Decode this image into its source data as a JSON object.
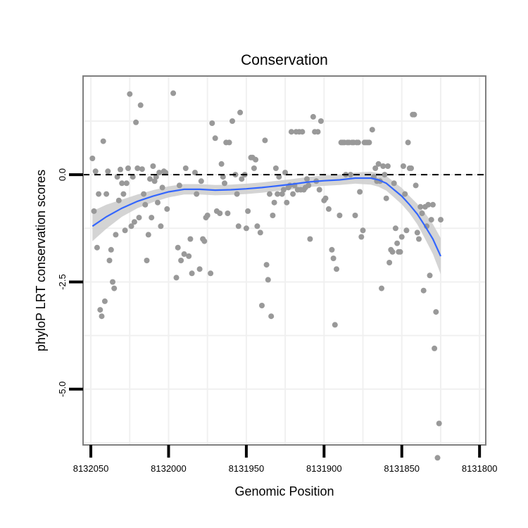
{
  "chart_data": {
    "type": "scatter",
    "title": "Conservation",
    "xlabel": "Genomic Position",
    "ylabel": "phyloP LRT conservation scores",
    "x_reversed": true,
    "xlim": [
      8132055,
      8131796
    ],
    "ylim": [
      -6.3,
      2.3
    ],
    "x_ticks": [
      8132050,
      8132000,
      8131950,
      8131900,
      8131850,
      8131800
    ],
    "x_tick_labels": [
      "8132050",
      "8132000",
      "8131950",
      "8131900",
      "8131850",
      "8131800"
    ],
    "y_ticks": [
      0.0,
      -2.5,
      -5.0
    ],
    "y_tick_labels": [
      "0.0",
      "-2.5",
      "-5.0"
    ],
    "reference_line": 0,
    "grid": true,
    "colors": {
      "points": "#999999",
      "smooth": "#3366ff",
      "ribbon": "#cccccc",
      "grid": "#f0f0f0",
      "border": "#7f7f7f"
    },
    "series": [
      {
        "type": "scatter",
        "points": [
          [
            8132049,
            0.38
          ],
          [
            8132048,
            -0.85
          ],
          [
            8132047,
            0.08
          ],
          [
            8132046,
            -1.7
          ],
          [
            8132045,
            -0.45
          ],
          [
            8132044,
            -3.15
          ],
          [
            8132043,
            -3.3
          ],
          [
            8132042,
            0.78
          ],
          [
            8132041,
            -2.95
          ],
          [
            8132040,
            -0.45
          ],
          [
            8132039,
            0.08
          ],
          [
            8132038,
            -2.0
          ],
          [
            8132037,
            -1.75
          ],
          [
            8132036,
            -2.5
          ],
          [
            8132035,
            -2.65
          ],
          [
            8132034,
            -1.4
          ],
          [
            8132033,
            -0.05
          ],
          [
            8132032,
            -0.6
          ],
          [
            8132031,
            0.12
          ],
          [
            8132030,
            -0.2
          ],
          [
            8132029,
            -0.45
          ],
          [
            8132028,
            -1.3
          ],
          [
            8132027,
            -0.2
          ],
          [
            8132026,
            0.15
          ],
          [
            8132025,
            1.88
          ],
          [
            8132024,
            -1.2
          ],
          [
            8132023,
            -0.05
          ],
          [
            8132022,
            -1.1
          ],
          [
            8132021,
            1.22
          ],
          [
            8132020,
            0.15
          ],
          [
            8132019,
            -1.0
          ],
          [
            8132018,
            1.62
          ],
          [
            8132017,
            0.13
          ],
          [
            8132016,
            -0.45
          ],
          [
            8132015,
            -0.7
          ],
          [
            8132014,
            -2.0
          ],
          [
            8132013,
            -1.4
          ],
          [
            8132012,
            -0.1
          ],
          [
            8132011,
            -1.0
          ],
          [
            8132010,
            0.2
          ],
          [
            8132009,
            -0.15
          ],
          [
            8132008,
            -0.05
          ],
          [
            8132007,
            -0.65
          ],
          [
            8132006,
            0.05
          ],
          [
            8132005,
            -1.2
          ],
          [
            8132004,
            -0.3
          ],
          [
            8132003,
            0.08
          ],
          [
            8132002,
            0.05
          ],
          [
            8132001,
            -0.8
          ],
          [
            8131997,
            1.9
          ],
          [
            8131995,
            -2.4
          ],
          [
            8131994,
            -1.7
          ],
          [
            8131993,
            -0.25
          ],
          [
            8131992,
            -2.0
          ],
          [
            8131990,
            -1.85
          ],
          [
            8131989,
            0.15
          ],
          [
            8131987,
            -1.9
          ],
          [
            8131986,
            -1.5
          ],
          [
            8131985,
            -2.3
          ],
          [
            8131983,
            0.05
          ],
          [
            8131982,
            -0.45
          ],
          [
            8131980,
            -2.2
          ],
          [
            8131979,
            -0.15
          ],
          [
            8131978,
            -1.5
          ],
          [
            8131977,
            -1.55
          ],
          [
            8131976,
            -1.0
          ],
          [
            8131975,
            -0.95
          ],
          [
            8131973,
            -2.3
          ],
          [
            8131972,
            1.2
          ],
          [
            8131970,
            0.85
          ],
          [
            8131969,
            -0.85
          ],
          [
            8131967,
            -0.9
          ],
          [
            8131966,
            0.25
          ],
          [
            8131965,
            -0.05
          ],
          [
            8131964,
            -0.2
          ],
          [
            8131963,
            0.75
          ],
          [
            8131962,
            -0.9
          ],
          [
            8131961,
            0.75
          ],
          [
            8131959,
            1.25
          ],
          [
            8131957,
            0.0
          ],
          [
            8131956,
            -0.45
          ],
          [
            8131955,
            -1.2
          ],
          [
            8131954,
            1.45
          ],
          [
            8131953,
            -0.1
          ],
          [
            8131951,
            0.0
          ],
          [
            8131950,
            -1.25
          ],
          [
            8131949,
            -0.85
          ],
          [
            8131947,
            0.4
          ],
          [
            8131946,
            0.4
          ],
          [
            8131945,
            0.15
          ],
          [
            8131944,
            0.35
          ],
          [
            8131943,
            -1.2
          ],
          [
            8131941,
            -1.35
          ],
          [
            8131940,
            -3.05
          ],
          [
            8131938,
            0.8
          ],
          [
            8131937,
            -2.1
          ],
          [
            8131936,
            -2.45
          ],
          [
            8131935,
            -0.45
          ],
          [
            8131934,
            -3.3
          ],
          [
            8131933,
            -0.95
          ],
          [
            8131932,
            -0.65
          ],
          [
            8131931,
            0.15
          ],
          [
            8131930,
            -0.45
          ],
          [
            8131929,
            -0.05
          ],
          [
            8131927,
            -0.45
          ],
          [
            8131926,
            -0.35
          ],
          [
            8131925,
            0.05
          ],
          [
            8131924,
            -0.65
          ],
          [
            8131923,
            -0.3
          ],
          [
            8131922,
            -0.25
          ],
          [
            8131921,
            1.0
          ],
          [
            8131920,
            -0.45
          ],
          [
            8131919,
            -0.25
          ],
          [
            8131918,
            1.0
          ],
          [
            8131917,
            -0.35
          ],
          [
            8131916,
            1.0
          ],
          [
            8131915,
            -0.35
          ],
          [
            8131914,
            1.0
          ],
          [
            8131913,
            -0.35
          ],
          [
            8131912,
            -0.3
          ],
          [
            8131911,
            -0.1
          ],
          [
            8131910,
            -0.25
          ],
          [
            8131909,
            -1.5
          ],
          [
            8131907,
            1.35
          ],
          [
            8131906,
            1.0
          ],
          [
            8131905,
            -0.15
          ],
          [
            8131904,
            1.0
          ],
          [
            8131903,
            -0.35
          ],
          [
            8131902,
            1.25
          ],
          [
            8131900,
            -0.6
          ],
          [
            8131899,
            -0.55
          ],
          [
            8131897,
            -0.8
          ],
          [
            8131895,
            -1.75
          ],
          [
            8131894,
            -1.95
          ],
          [
            8131893,
            -3.5
          ],
          [
            8131892,
            -2.2
          ],
          [
            8131890,
            -0.95
          ],
          [
            8131889,
            0.75
          ],
          [
            8131888,
            0.75
          ],
          [
            8131887,
            0.75
          ],
          [
            8131886,
            0.0
          ],
          [
            8131885,
            0.75
          ],
          [
            8131884,
            0.75
          ],
          [
            8131883,
            0.0
          ],
          [
            8131882,
            0.75
          ],
          [
            8131881,
            0.75
          ],
          [
            8131880,
            -0.95
          ],
          [
            8131879,
            0.75
          ],
          [
            8131878,
            0.75
          ],
          [
            8131877,
            -0.4
          ],
          [
            8131876,
            -1.45
          ],
          [
            8131875,
            -1.3
          ],
          [
            8131874,
            0.75
          ],
          [
            8131873,
            0.75
          ],
          [
            8131872,
            0.75
          ],
          [
            8131871,
            0.75
          ],
          [
            8131869,
            1.05
          ],
          [
            8131868,
            -0.05
          ],
          [
            8131867,
            0.15
          ],
          [
            8131866,
            -0.15
          ],
          [
            8131865,
            0.25
          ],
          [
            8131864,
            -0.15
          ],
          [
            8131863,
            -2.65
          ],
          [
            8131862,
            0.2
          ],
          [
            8131861,
            0.0
          ],
          [
            8131860,
            -0.55
          ],
          [
            8131859,
            0.2
          ],
          [
            8131858,
            -2.05
          ],
          [
            8131857,
            -1.75
          ],
          [
            8131856,
            -1.8
          ],
          [
            8131855,
            -0.2
          ],
          [
            8131854,
            -1.25
          ],
          [
            8131853,
            -1.6
          ],
          [
            8131852,
            -1.8
          ],
          [
            8131851,
            -1.8
          ],
          [
            8131850,
            -1.45
          ],
          [
            8131849,
            0.2
          ],
          [
            8131848,
            -0.45
          ],
          [
            8131847,
            -1.3
          ],
          [
            8131846,
            0.75
          ],
          [
            8131845,
            0.15
          ],
          [
            8131844,
            0.15
          ],
          [
            8131843,
            1.4
          ],
          [
            8131842,
            1.4
          ],
          [
            8131841,
            -0.25
          ],
          [
            8131840,
            -1.35
          ],
          [
            8131839,
            -1.5
          ],
          [
            8131838,
            -0.75
          ],
          [
            8131837,
            -0.9
          ],
          [
            8131836,
            -2.7
          ],
          [
            8131835,
            -0.75
          ],
          [
            8131834,
            -1.2
          ],
          [
            8131833,
            -0.7
          ],
          [
            8131832,
            -2.35
          ],
          [
            8131831,
            -1.05
          ],
          [
            8131830,
            -0.7
          ],
          [
            8131829,
            -4.05
          ],
          [
            8131828,
            -3.2
          ],
          [
            8131827,
            -6.6
          ],
          [
            8131826,
            -5.8
          ],
          [
            8131825,
            -1.05
          ]
        ]
      },
      {
        "type": "smooth",
        "x": [
          8132049,
          8132040,
          8132030,
          8132020,
          8132010,
          8132000,
          8131990,
          8131980,
          8131970,
          8131960,
          8131950,
          8131940,
          8131930,
          8131920,
          8131910,
          8131900,
          8131890,
          8131880,
          8131870,
          8131865,
          8131860,
          8131855,
          8131850,
          8131845,
          8131840,
          8131835,
          8131830,
          8131825
        ],
        "y": [
          -1.2,
          -0.98,
          -0.78,
          -0.62,
          -0.5,
          -0.4,
          -0.34,
          -0.34,
          -0.36,
          -0.35,
          -0.33,
          -0.3,
          -0.26,
          -0.22,
          -0.17,
          -0.14,
          -0.12,
          -0.08,
          -0.08,
          -0.12,
          -0.2,
          -0.35,
          -0.5,
          -0.7,
          -0.92,
          -1.2,
          -1.5,
          -1.9
        ],
        "ribbon_half_width": [
          0.35,
          0.28,
          0.2,
          0.16,
          0.14,
          0.13,
          0.12,
          0.12,
          0.12,
          0.12,
          0.12,
          0.12,
          0.12,
          0.12,
          0.12,
          0.12,
          0.12,
          0.13,
          0.15,
          0.16,
          0.17,
          0.18,
          0.19,
          0.2,
          0.24,
          0.3,
          0.35,
          0.42
        ]
      }
    ]
  }
}
